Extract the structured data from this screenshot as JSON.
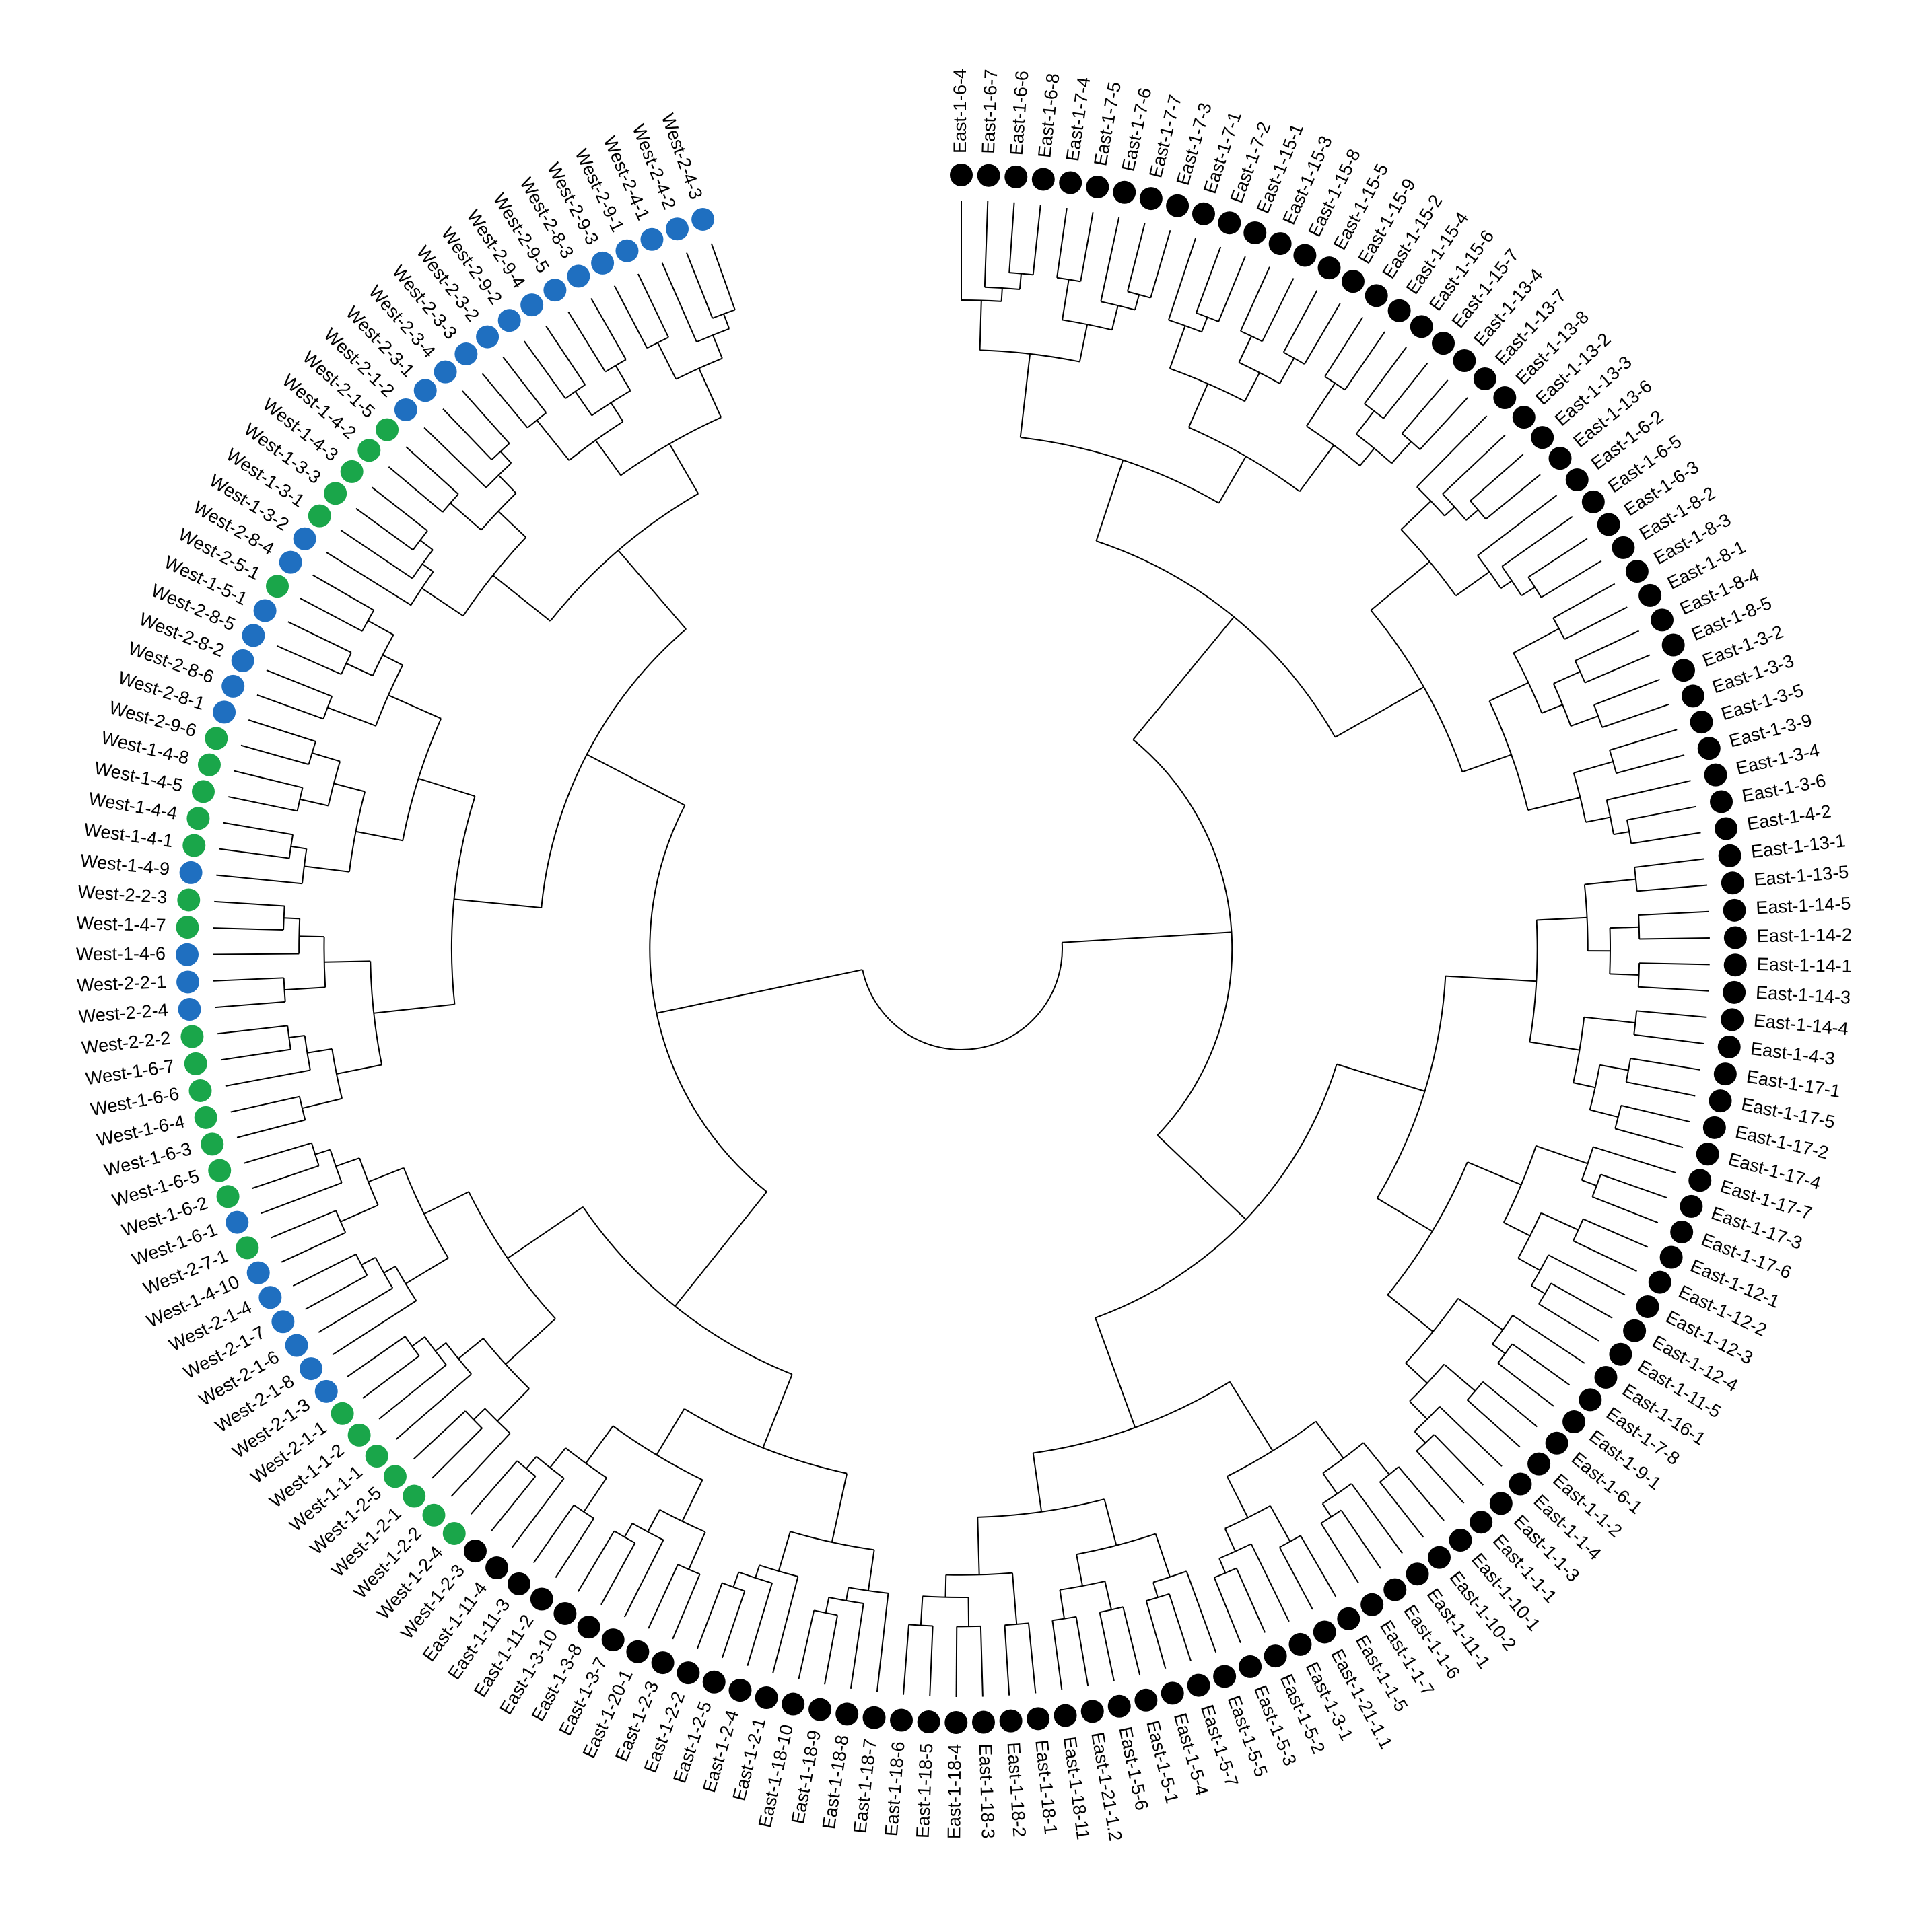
{
  "leaves": [
    "East-1-6-4",
    "East-1-6-7",
    "East-1-6-6",
    "East-1-6-8",
    "East-1-7-4",
    "East-1-7-5",
    "East-1-7-6",
    "East-1-7-7",
    "East-1-7-3",
    "East-1-7-1",
    "East-1-7-2",
    "East-1-15-1",
    "East-1-15-3",
    "East-1-15-8",
    "East-1-15-5",
    "East-1-15-9",
    "East-1-15-2",
    "East-1-15-4",
    "East-1-15-6",
    "East-1-15-7",
    "East-1-13-4",
    "East-1-13-7",
    "East-1-13-8",
    "East-1-13-2",
    "East-1-13-3",
    "East-1-13-6",
    "East-1-6-2",
    "East-1-6-5",
    "East-1-6-3",
    "East-1-8-2",
    "East-1-8-3",
    "East-1-8-1",
    "East-1-8-4",
    "East-1-8-5",
    "East-1-3-2",
    "East-1-3-3",
    "East-1-3-5",
    "East-1-3-9",
    "East-1-3-4",
    "East-1-3-6",
    "East-1-4-2",
    "East-1-13-1",
    "East-1-13-5",
    "East-1-14-5",
    "East-1-14-2",
    "East-1-14-1",
    "East-1-14-3",
    "East-1-14-4",
    "East-1-4-3",
    "East-1-17-1",
    "East-1-17-5",
    "East-1-17-2",
    "East-1-17-4",
    "East-1-17-7",
    "East-1-17-3",
    "East-1-17-6",
    "East-1-12-1",
    "East-1-12-2",
    "East-1-12-3",
    "East-1-12-4",
    "East-1-11-5",
    "East-1-16-1",
    "East-1-7-8",
    "East-1-9-1",
    "East-1-6-1",
    "East-1-1-2",
    "East-1-1-4",
    "East-1-1-3",
    "East-1-1-1",
    "East-1-10-1",
    "East-1-10-2",
    "East-1-11-1",
    "East-1-1-6",
    "East-1-1-7",
    "East-1-1-5",
    "East-1-21-1.1",
    "East-1-3-1",
    "East-1-5-2",
    "East-1-5-3",
    "East-1-5-5",
    "East-1-5-7",
    "East-1-5-4",
    "East-1-5-1",
    "East-1-5-6",
    "East-1-21-1.2",
    "East-1-18-11",
    "East-1-18-1",
    "East-1-18-2",
    "East-1-18-3",
    "East-1-18-4",
    "East-1-18-5",
    "East-1-18-6",
    "East-1-18-7",
    "East-1-18-8",
    "East-1-18-9",
    "East-1-18-10",
    "East-1-2-1",
    "East-1-2-4",
    "East-1-2-5",
    "East-1-2-2",
    "East-1-2-3",
    "East-1-20-1",
    "East-1-3-7",
    "East-1-3-8",
    "East-1-3-10",
    "East-1-11-2",
    "East-1-11-3",
    "East-1-11-4",
    "West-1-2-3",
    "West-1-2-4",
    "West-1-2-2",
    "West-1-2-1",
    "West-1-2-5",
    "West-1-1-1",
    "West-1-1-2",
    "West-2-1-1",
    "West-2-1-3",
    "West-2-1-8",
    "West-2-1-6",
    "West-2-1-7",
    "West-2-1-4",
    "West-1-4-10",
    "West-2-7-1",
    "West-1-6-1",
    "West-1-6-2",
    "West-1-6-5",
    "West-1-6-3",
    "West-1-6-4",
    "West-1-6-6",
    "West-1-6-7",
    "West-2-2-2",
    "West-2-2-4",
    "West-2-2-1",
    "West-1-4-6",
    "West-1-4-7",
    "West-2-2-3",
    "West-1-4-9",
    "West-1-4-1",
    "West-1-4-4",
    "West-1-4-5",
    "West-1-4-8",
    "West-2-9-6",
    "West-2-8-1",
    "West-2-8-6",
    "West-2-8-2",
    "West-2-8-5",
    "West-1-5-1",
    "West-2-5-1",
    "West-2-8-4",
    "West-1-3-2",
    "West-1-3-1",
    "West-1-3-3",
    "West-1-4-3",
    "West-1-4-2",
    "West-2-1-5",
    "West-2-1-2",
    "West-2-3-1",
    "West-2-3-4",
    "West-2-3-3",
    "West-2-3-2",
    "West-2-9-2",
    "West-2-9-4",
    "West-2-9-5",
    "West-2-8-3",
    "West-2-9-3",
    "West-2-9-1",
    "West-2-4-1",
    "West-2-4-2",
    "West-2-4-3"
  ],
  "colors": [
    "#000000",
    "#000000",
    "#000000",
    "#000000",
    "#000000",
    "#000000",
    "#000000",
    "#000000",
    "#000000",
    "#000000",
    "#000000",
    "#000000",
    "#000000",
    "#000000",
    "#000000",
    "#000000",
    "#000000",
    "#000000",
    "#000000",
    "#000000",
    "#000000",
    "#000000",
    "#000000",
    "#000000",
    "#000000",
    "#000000",
    "#000000",
    "#000000",
    "#000000",
    "#000000",
    "#000000",
    "#000000",
    "#000000",
    "#000000",
    "#000000",
    "#000000",
    "#000000",
    "#000000",
    "#000000",
    "#000000",
    "#000000",
    "#000000",
    "#000000",
    "#000000",
    "#000000",
    "#000000",
    "#000000",
    "#000000",
    "#000000",
    "#000000",
    "#000000",
    "#000000",
    "#000000",
    "#000000",
    "#000000",
    "#000000",
    "#000000",
    "#000000",
    "#000000",
    "#000000",
    "#000000",
    "#000000",
    "#000000",
    "#000000",
    "#000000",
    "#000000",
    "#000000",
    "#000000",
    "#000000",
    "#000000",
    "#000000",
    "#000000",
    "#000000",
    "#000000",
    "#000000",
    "#000000",
    "#000000",
    "#000000",
    "#000000",
    "#000000",
    "#000000",
    "#000000",
    "#000000",
    "#000000",
    "#000000",
    "#000000",
    "#000000",
    "#000000",
    "#000000",
    "#000000",
    "#000000",
    "#000000",
    "#000000",
    "#000000",
    "#000000",
    "#000000",
    "#000000",
    "#000000",
    "#000000",
    "#000000",
    "#000000",
    "#000000",
    "#000000",
    "#000000",
    "#000000",
    "#000000",
    "#000000",
    "#000000",
    "#000000",
    "#1aa64a",
    "#1aa64a",
    "#1aa64a",
    "#1aa64a",
    "#1aa64a",
    "#1aa64a",
    "#1aa64a",
    "#1f6fc0",
    "#1f6fc0",
    "#1f6fc0",
    "#1f6fc0",
    "#1f6fc0",
    "#1f6fc0",
    "#1aa64a",
    "#1f6fc0",
    "#1aa64a",
    "#1aa64a",
    "#1aa64a",
    "#1aa64a",
    "#1aa64a",
    "#1aa64a",
    "#1aa64a",
    "#1f6fc0",
    "#1f6fc0",
    "#1f6fc0",
    "#1aa64a",
    "#1aa64a",
    "#1f6fc0",
    "#1aa64a",
    "#1aa64a",
    "#1aa64a",
    "#1aa64a",
    "#1aa64a",
    "#1f6fc0",
    "#1f6fc0",
    "#1f6fc0",
    "#1f6fc0",
    "#1f6fc0",
    "#1aa64a",
    "#1f6fc0",
    "#1f6fc0",
    "#1aa64a",
    "#1aa64a",
    "#1aa64a",
    "#1aa64a",
    "#1aa64a",
    "#1f6fc0",
    "#1f6fc0",
    "#1f6fc0",
    "#1f6fc0",
    "#1f6fc0",
    "#1f6fc0",
    "#1f6fc0",
    "#1f6fc0",
    "#1f6fc0",
    "#1f6fc0",
    "#1f6fc0",
    "#1f6fc0",
    "#1f6fc0",
    "#1f6fc0",
    "#1f6fc0"
  ]
}
